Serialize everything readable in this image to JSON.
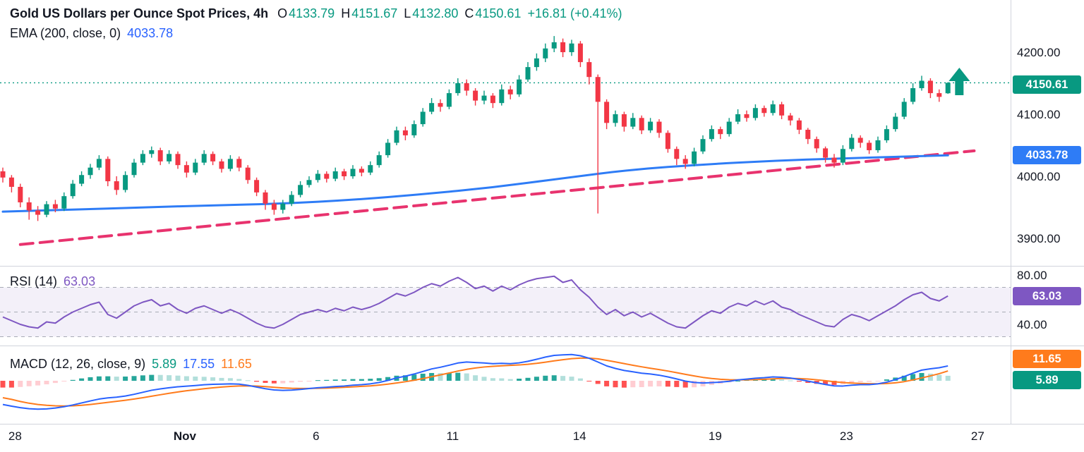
{
  "header": {
    "line1": {
      "title": "Gold US Dollars per Ounce Spot Prices, 4h",
      "o_label": "O",
      "o_value": "4133.79",
      "h_label": "H",
      "h_value": "4151.67",
      "l_label": "L",
      "l_value": "4132.80",
      "c_label": "C",
      "c_value": "4150.61",
      "change": "+16.81 (+0.41%)"
    },
    "line2": {
      "label": "EMA (200, close, 0)",
      "value": "4033.78"
    }
  },
  "rsi_legend": {
    "label": "RSI (14)",
    "value": "63.03"
  },
  "macd_legend": {
    "label": "MACD (12, 26, close, 9)",
    "hist_value": "5.89",
    "macd_value": "17.55",
    "signal_value": "11.65"
  },
  "axis": {
    "badges": {
      "close": "4150.61",
      "ema": "4033.78",
      "rsi": "63.03",
      "macd_signal": "11.65",
      "macd_hist": "5.89"
    }
  },
  "colors": {
    "up": "#089981",
    "down": "#F23645",
    "ema": "#2E7CF6",
    "trend": "#E8336E",
    "rsi": "#7E57C2",
    "rsi_band_fill": "rgba(126,87,194,0.09)",
    "level_line": "#A8ABB5",
    "macd_line": "#2962FF",
    "signal_line": "#FF7B1C",
    "hist_pos": "#26A69A",
    "hist_pos_weak": "#B2DFDB",
    "hist_neg": "#FF5252",
    "hist_neg_weak": "#FFCDD2",
    "axis_text": "#131722",
    "separator": "#D1D4DC"
  },
  "chart_data": {
    "type": "candlestick",
    "title": "Gold US Dollars per Ounce Spot Prices",
    "timeframe": "4h",
    "last": {
      "open": 4133.79,
      "high": 4151.67,
      "low": 4132.8,
      "close": 4150.61,
      "change": 16.81,
      "change_pct": 0.41
    },
    "price_axis": {
      "ticks": [
        4200,
        4100,
        4000,
        3900
      ],
      "min": 3880,
      "max": 4240
    },
    "time_labels": [
      {
        "label": "28",
        "i": 1.4
      },
      {
        "label": "Nov",
        "i": 20.8,
        "bold": true
      },
      {
        "label": "6",
        "i": 35.8
      },
      {
        "label": "11",
        "i": 51.4
      },
      {
        "label": "14",
        "i": 65.9
      },
      {
        "label": "19",
        "i": 81.4
      },
      {
        "label": "23",
        "i": 96.4
      },
      {
        "label": "27",
        "i": 111.4
      }
    ],
    "candles": [
      [
        4008,
        4014,
        3990,
        3998
      ],
      [
        3998,
        4002,
        3974,
        3983
      ],
      [
        3983,
        3988,
        3950,
        3958
      ],
      [
        3958,
        3966,
        3930,
        3945
      ],
      [
        3945,
        3952,
        3928,
        3938
      ],
      [
        3938,
        3960,
        3934,
        3955
      ],
      [
        3955,
        3962,
        3942,
        3948
      ],
      [
        3948,
        3974,
        3944,
        3968
      ],
      [
        3968,
        3994,
        3964,
        3988
      ],
      [
        3988,
        4008,
        3984,
        4002
      ],
      [
        4002,
        4020,
        3996,
        4014
      ],
      [
        4014,
        4034,
        4010,
        4028
      ],
      [
        4028,
        4032,
        3984,
        3992
      ],
      [
        3992,
        4000,
        3970,
        3978
      ],
      [
        3978,
        4008,
        3974,
        4002
      ],
      [
        4002,
        4028,
        3998,
        4022
      ],
      [
        4022,
        4042,
        4018,
        4036
      ],
      [
        4036,
        4048,
        4030,
        4042
      ],
      [
        4042,
        4046,
        4018,
        4024
      ],
      [
        4024,
        4042,
        4020,
        4036
      ],
      [
        4036,
        4040,
        4012,
        4018
      ],
      [
        4018,
        4024,
        3998,
        4006
      ],
      [
        4006,
        4028,
        4002,
        4022
      ],
      [
        4022,
        4042,
        4018,
        4036
      ],
      [
        4036,
        4040,
        4018,
        4024
      ],
      [
        4024,
        4028,
        4006,
        4012
      ],
      [
        4012,
        4034,
        4008,
        4028
      ],
      [
        4028,
        4032,
        4008,
        4014
      ],
      [
        4014,
        4018,
        3988,
        3994
      ],
      [
        3994,
        3998,
        3968,
        3974
      ],
      [
        3974,
        3978,
        3946,
        3956
      ],
      [
        3956,
        3962,
        3938,
        3946
      ],
      [
        3946,
        3962,
        3940,
        3956
      ],
      [
        3956,
        3976,
        3952,
        3970
      ],
      [
        3970,
        3992,
        3966,
        3986
      ],
      [
        3986,
        4000,
        3982,
        3994
      ],
      [
        3994,
        4010,
        3990,
        4004
      ],
      [
        4004,
        4008,
        3990,
        3996
      ],
      [
        3996,
        4014,
        3992,
        4008
      ],
      [
        4008,
        4012,
        3994,
        4000
      ],
      [
        4000,
        4018,
        3996,
        4012
      ],
      [
        4012,
        4016,
        4000,
        4006
      ],
      [
        4006,
        4024,
        4002,
        4018
      ],
      [
        4018,
        4040,
        4014,
        4034
      ],
      [
        4034,
        4060,
        4030,
        4054
      ],
      [
        4054,
        4080,
        4050,
        4074
      ],
      [
        4074,
        4080,
        4058,
        4066
      ],
      [
        4066,
        4090,
        4062,
        4084
      ],
      [
        4084,
        4110,
        4080,
        4104
      ],
      [
        4104,
        4126,
        4100,
        4118
      ],
      [
        4118,
        4124,
        4104,
        4112
      ],
      [
        4112,
        4140,
        4108,
        4134
      ],
      [
        4134,
        4158,
        4130,
        4150
      ],
      [
        4150,
        4156,
        4130,
        4138
      ],
      [
        4138,
        4142,
        4114,
        4122
      ],
      [
        4122,
        4138,
        4116,
        4130
      ],
      [
        4130,
        4134,
        4110,
        4118
      ],
      [
        4118,
        4148,
        4114,
        4140
      ],
      [
        4140,
        4146,
        4124,
        4132
      ],
      [
        4132,
        4163,
        4128,
        4156
      ],
      [
        4156,
        4184,
        4152,
        4176
      ],
      [
        4176,
        4198,
        4170,
        4190
      ],
      [
        4190,
        4214,
        4184,
        4206
      ],
      [
        4206,
        4226,
        4200,
        4216
      ],
      [
        4216,
        4222,
        4192,
        4200
      ],
      [
        4200,
        4220,
        4194,
        4214
      ],
      [
        4214,
        4218,
        4176,
        4184
      ],
      [
        4184,
        4190,
        4148,
        4160
      ],
      [
        4160,
        4164,
        3940,
        4120
      ],
      [
        4120,
        4124,
        4076,
        4086
      ],
      [
        4086,
        4106,
        4080,
        4100
      ],
      [
        4100,
        4104,
        4072,
        4080
      ],
      [
        4080,
        4102,
        4076,
        4094
      ],
      [
        4094,
        4098,
        4068,
        4074
      ],
      [
        4074,
        4094,
        4070,
        4088
      ],
      [
        4088,
        4092,
        4062,
        4070
      ],
      [
        4070,
        4074,
        4038,
        4044
      ],
      [
        4044,
        4048,
        4018,
        4028
      ],
      [
        4028,
        4034,
        4012,
        4020
      ],
      [
        4020,
        4046,
        4016,
        4040
      ],
      [
        4040,
        4066,
        4036,
        4060
      ],
      [
        4060,
        4082,
        4056,
        4076
      ],
      [
        4076,
        4080,
        4060,
        4068
      ],
      [
        4068,
        4094,
        4064,
        4088
      ],
      [
        4088,
        4108,
        4084,
        4100
      ],
      [
        4100,
        4106,
        4088,
        4094
      ],
      [
        4094,
        4116,
        4090,
        4110
      ],
      [
        4110,
        4114,
        4096,
        4102
      ],
      [
        4102,
        4122,
        4098,
        4116
      ],
      [
        4116,
        4120,
        4092,
        4098
      ],
      [
        4098,
        4102,
        4082,
        4090
      ],
      [
        4090,
        4094,
        4068,
        4075
      ],
      [
        4075,
        4078,
        4052,
        4060
      ],
      [
        4060,
        4064,
        4038,
        4045
      ],
      [
        4045,
        4048,
        4022,
        4030
      ],
      [
        4030,
        4036,
        4014,
        4022
      ],
      [
        4022,
        4050,
        4018,
        4044
      ],
      [
        4044,
        4068,
        4040,
        4062
      ],
      [
        4062,
        4066,
        4046,
        4054
      ],
      [
        4054,
        4058,
        4036,
        4042
      ],
      [
        4042,
        4064,
        4038,
        4058
      ],
      [
        4058,
        4082,
        4054,
        4076
      ],
      [
        4076,
        4102,
        4072,
        4096
      ],
      [
        4096,
        4126,
        4092,
        4120
      ],
      [
        4120,
        4150,
        4116,
        4142
      ],
      [
        4142,
        4162,
        4138,
        4154
      ],
      [
        4154,
        4158,
        4126,
        4134
      ],
      [
        4134,
        4140,
        4120,
        4128
      ],
      [
        4133.79,
        4151.67,
        4132.8,
        4150.61
      ]
    ],
    "ema200": {
      "label": "EMA (200, close, 0)",
      "last": 4033.78,
      "points": [
        [
          0,
          3943
        ],
        [
          8,
          3946
        ],
        [
          16,
          3950
        ],
        [
          24,
          3953
        ],
        [
          32,
          3956
        ],
        [
          40,
          3962
        ],
        [
          48,
          3971
        ],
        [
          56,
          3982
        ],
        [
          64,
          3997
        ],
        [
          72,
          4011
        ],
        [
          80,
          4019
        ],
        [
          88,
          4025
        ],
        [
          96,
          4029
        ],
        [
          104,
          4032
        ],
        [
          108,
          4033.78
        ]
      ]
    },
    "trendline": {
      "style": "dashed",
      "from": [
        2,
        3890
      ],
      "to": [
        111,
        4041
      ]
    },
    "last_price_line": 4150.61,
    "marker": {
      "type": "arrow-up",
      "i": 109.3,
      "price_top": 4175
    },
    "rsi": {
      "label": "RSI (14)",
      "period": 14,
      "last": 63.03,
      "levels": [
        70,
        50,
        30
      ],
      "axis_ticks": [
        80,
        40
      ],
      "values": [
        46,
        43,
        40,
        38,
        37,
        42,
        41,
        46,
        50,
        53,
        56,
        58,
        48,
        45,
        50,
        55,
        58,
        60,
        55,
        57,
        52,
        49,
        53,
        55,
        52,
        49,
        52,
        49,
        45,
        41,
        38,
        37,
        40,
        44,
        48,
        50,
        52,
        50,
        53,
        51,
        54,
        52,
        54,
        57,
        61,
        65,
        63,
        66,
        70,
        73,
        71,
        75,
        78,
        74,
        69,
        71,
        67,
        71,
        68,
        72,
        75,
        77,
        78,
        79,
        74,
        76,
        68,
        62,
        54,
        48,
        52,
        47,
        50,
        46,
        49,
        45,
        41,
        38,
        37,
        42,
        47,
        51,
        49,
        54,
        57,
        55,
        59,
        56,
        59,
        54,
        52,
        48,
        45,
        42,
        39,
        38,
        44,
        48,
        46,
        43,
        47,
        51,
        55,
        60,
        64,
        66,
        61,
        59,
        63.03
      ]
    },
    "macd": {
      "label": "MACD (12, 26, close, 9)",
      "last_macd": 17.55,
      "last_signal": 11.65,
      "last_hist": 5.89,
      "macd": [
        -28,
        -30,
        -31.8,
        -33,
        -33.5,
        -33.2,
        -32.2,
        -30.6,
        -28.6,
        -26.2,
        -23.8,
        -21.6,
        -20.2,
        -19.4,
        -18,
        -16,
        -13.6,
        -11.2,
        -9.6,
        -8.2,
        -7.1,
        -6.4,
        -5.6,
        -4.7,
        -4.2,
        -4,
        -3.6,
        -4,
        -5.4,
        -7.4,
        -9.4,
        -10.8,
        -11.4,
        -11,
        -10.2,
        -9.2,
        -8.2,
        -7.6,
        -6.8,
        -6.2,
        -5.2,
        -4.6,
        -3.6,
        -2,
        0.4,
        3.4,
        5.4,
        8,
        11,
        14,
        16,
        18.4,
        21,
        22.2,
        21.6,
        21,
        20.2,
        20.6,
        20.2,
        21.2,
        23,
        25.4,
        28,
        30,
        30.6,
        31,
        29.6,
        26.6,
        22.2,
        17.6,
        14.6,
        12.2,
        10.6,
        9,
        8,
        6.6,
        4.6,
        2.2,
        -0.4,
        -2,
        -2.6,
        -2.2,
        -1.6,
        -0.6,
        1,
        2,
        3,
        3.6,
        4.6,
        4.2,
        3.2,
        1.6,
        -0.4,
        -2.4,
        -4.4,
        -6,
        -6.2,
        -5.2,
        -4.6,
        -4.6,
        -3.6,
        -1.6,
        1.4,
        5,
        9,
        12.6,
        14.2,
        15.4,
        17.55
      ],
      "signal": [
        -20,
        -22,
        -24.5,
        -26.5,
        -28,
        -29,
        -29.6,
        -29.8,
        -29.6,
        -29,
        -28,
        -26.8,
        -25.5,
        -24.3,
        -23,
        -21.6,
        -20,
        -18.2,
        -16.5,
        -14.8,
        -13.2,
        -11.8,
        -10.6,
        -9.4,
        -8.3,
        -7.4,
        -6.7,
        -6.1,
        -6,
        -6.3,
        -6.9,
        -7.7,
        -8.4,
        -8.9,
        -9.1,
        -9.1,
        -8.9,
        -8.6,
        -8.2,
        -7.7,
        -7.2,
        -6.6,
        -6,
        -5.1,
        -4,
        -2.6,
        -1.1,
        0.6,
        2.6,
        4.8,
        7,
        9.2,
        11.5,
        13.5,
        15.1,
        16.3,
        17.1,
        17.7,
        18.2,
        18.7,
        19.5,
        20.6,
        22,
        23.5,
        24.9,
        26.1,
        26.8,
        26.8,
        25.9,
        24.2,
        22.3,
        20.3,
        18.3,
        16.5,
        14.8,
        13.2,
        11.5,
        9.6,
        7.6,
        5.7,
        4,
        2.7,
        1.8,
        1.2,
        1,
        1.1,
        1.4,
        1.8,
        2.3,
        2.7,
        2.8,
        2.6,
        2.1,
        1.2,
        0.1,
        -1.1,
        -2.1,
        -2.7,
        -3.1,
        -3.4,
        -3.5,
        -3.2,
        -2.4,
        -1,
        1,
        3.4,
        5.8,
        8.4,
        11.65
      ]
    }
  }
}
